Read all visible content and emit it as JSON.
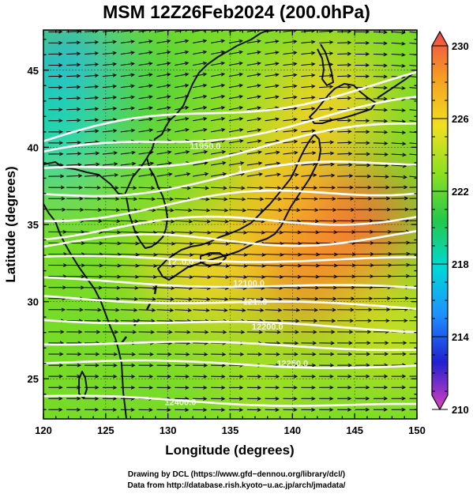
{
  "title": "MSM 12Z26Feb2024 (200.0hPa)",
  "credits": {
    "line1": "Drawing by DCL (https://www.gfd−dennou.org/library/dcl/)",
    "line2": "Data from http://database.rish.kyoto−u.ac.jp/arch/jmadata/"
  },
  "chart_data": {
    "type": "heatmap",
    "map_region": {
      "lon_range": [
        120,
        150
      ],
      "lat_range": [
        22.4,
        47.6
      ]
    },
    "xlabel": "Longitude (degrees)",
    "ylabel": "Latitude  (degrees)",
    "x_ticks": [
      120,
      125,
      130,
      135,
      140,
      145,
      150
    ],
    "y_ticks": [
      25,
      30,
      35,
      40,
      45
    ],
    "colorbar": {
      "range": [
        210,
        230
      ],
      "tick_labels": [
        "230",
        "226",
        "222",
        "218",
        "214",
        "210"
      ],
      "colors": [
        "#e040c0",
        "#2020d0",
        "#1e90ff",
        "#00d8d8",
        "#22c94a",
        "#8ce020",
        "#f0e020",
        "#f5a020",
        "#f04848"
      ]
    },
    "shading_quantity": "temperature (K) at 200.0hPa",
    "temperature_field_approx": [
      {
        "lon": 122,
        "lat": 45,
        "value": 216
      },
      {
        "lon": 121,
        "lat": 41,
        "value": 218
      },
      {
        "lon": 128,
        "lat": 44,
        "value": 221
      },
      {
        "lon": 124,
        "lat": 35,
        "value": 222
      },
      {
        "lon": 136,
        "lat": 42,
        "value": 222.5
      },
      {
        "lon": 143,
        "lat": 43,
        "value": 225.5
      },
      {
        "lon": 139,
        "lat": 37,
        "value": 226
      },
      {
        "lon": 145,
        "lat": 35,
        "value": 229
      },
      {
        "lon": 141,
        "lat": 32,
        "value": 228
      },
      {
        "lon": 133,
        "lat": 32,
        "value": 225.5
      },
      {
        "lon": 127,
        "lat": 27,
        "value": 222
      },
      {
        "lon": 138,
        "lat": 25,
        "value": 223
      },
      {
        "lon": 148,
        "lat": 28,
        "value": 224
      }
    ],
    "height_contours": [
      {
        "label": "11950.0",
        "lat_at_120": 40.4,
        "lat_at_150": 44.5,
        "label_lon": 133,
        "label_lat": 40.1
      },
      {
        "label": "",
        "lat_at_120": 39.3,
        "lat_at_150": 42.8
      },
      {
        "label": "1..",
        "lat_at_120": 38.2,
        "lat_at_150": 41.4,
        "label_lon": 136,
        "label_lat": 38.6
      },
      {
        "label": "",
        "lat_at_120": 36.9,
        "lat_at_150": 39.2
      },
      {
        "label": "",
        "lat_at_120": 35.6,
        "lat_at_150": 37.5
      },
      {
        "label": "",
        "lat_at_120": 34.5,
        "lat_at_150": 35.7
      },
      {
        "label": "",
        "lat_at_120": 33.7,
        "lat_at_150": 34.3
      },
      {
        "label": "12..0.0",
        "lat_at_120": 32.8,
        "lat_at_150": 32.7,
        "label_lon": 131,
        "label_lat": 32.6
      },
      {
        "label": "12100.0",
        "lat_at_120": 31.4,
        "lat_at_150": 30.8,
        "label_lon": 136.5,
        "label_lat": 31.2
      },
      {
        "label": "121..0",
        "lat_at_120": 30.3,
        "lat_at_150": 29.6,
        "label_lon": 137,
        "label_lat": 30.0
      },
      {
        "label": "12200.0",
        "lat_at_120": 28.9,
        "lat_at_150": 28.2,
        "label_lon": 138,
        "label_lat": 28.4
      },
      {
        "label": "",
        "lat_at_120": 27.4,
        "lat_at_150": 27.0
      },
      {
        "label": "12250.0",
        "lat_at_120": 26.1,
        "lat_at_150": 25.8,
        "label_lon": 140,
        "label_lat": 26.0
      },
      {
        "label": "12400.0",
        "lat_at_120": 23.8,
        "lat_at_150": 23.2,
        "label_lon": 131,
        "label_lat": 23.5
      }
    ],
    "wind_vectors": "westerly flow everywhere, arrows pointing east, slight anticyclonic curvature north of 38N",
    "grid": true
  }
}
